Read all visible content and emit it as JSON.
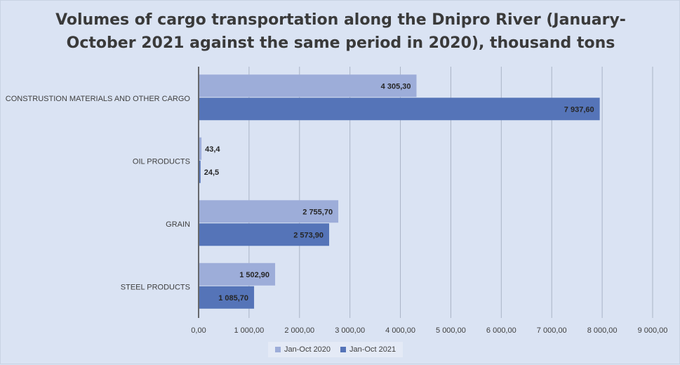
{
  "chart_data": {
    "type": "bar",
    "orientation": "horizontal",
    "title_line1": "Volumes of cargo transportation along the Dnipro River (January-",
    "title_line2": "October 2021 against the same period in 2020), thousand tons",
    "categories": [
      "CONSTRUSTION MATERIALS AND OTHER CARGO",
      "OIL PRODUCTS",
      "GRAIN",
      "STEEL PRODUCTS"
    ],
    "series": [
      {
        "name": "Jan-Oct 2020",
        "values": [
          4305.3,
          43.4,
          2755.7,
          1502.9
        ],
        "labels": [
          "4 305,30",
          "43,4",
          "2 755,70",
          "1 502,90"
        ],
        "color": "#9dadd9"
      },
      {
        "name": "Jan-Oct 2021",
        "values": [
          7937.6,
          24.5,
          2573.9,
          1085.7
        ],
        "labels": [
          "7 937,60",
          "24,5",
          "2 573,90",
          "1 085,70"
        ],
        "color": "#5574b8"
      }
    ],
    "xlim": [
      0,
      9000
    ],
    "xticks": [
      0,
      1000,
      2000,
      3000,
      4000,
      5000,
      6000,
      7000,
      8000,
      9000
    ],
    "xtick_labels": [
      "0,00",
      "1 000,00",
      "2 000,00",
      "3 000,00",
      "4 000,00",
      "5 000,00",
      "6 000,00",
      "7 000,00",
      "8 000,00",
      "9 000,00"
    ],
    "grid": "vertical",
    "legend_position": "bottom"
  }
}
